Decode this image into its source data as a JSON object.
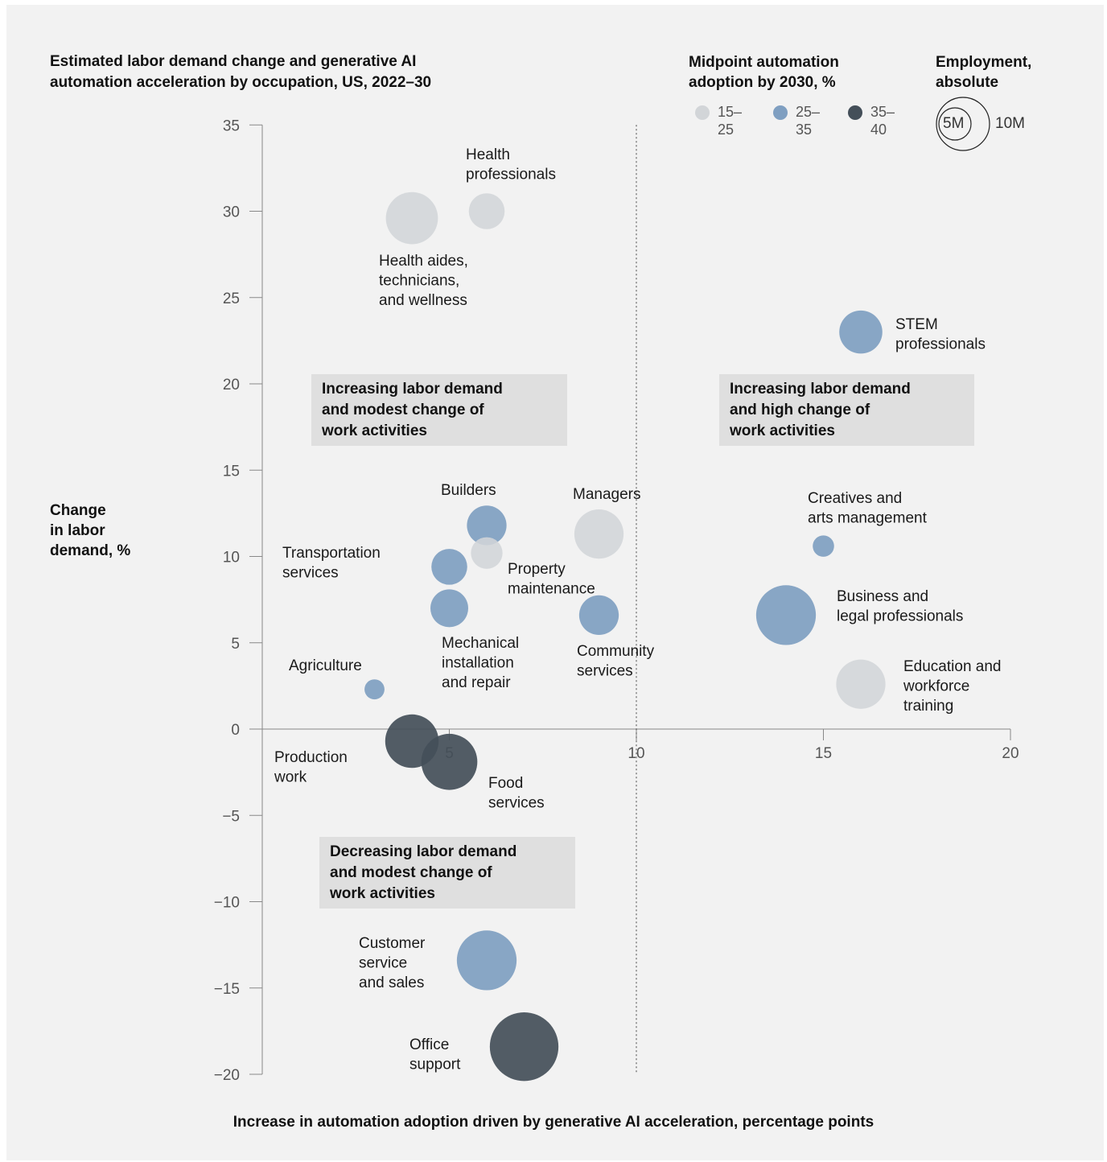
{
  "title": "Estimated labor demand change and generative AI\nautomation acceleration by occupation, US, 2022–30",
  "legend": {
    "color_title": "Midpoint automation\nadoption by 2030, %",
    "color_items": [
      {
        "label": "15–25",
        "color": "#d2d5d8"
      },
      {
        "label": "25–35",
        "color": "#7f9fc1"
      },
      {
        "label": "35–40",
        "color": "#444f59"
      }
    ],
    "size_title": "Employment,\nabsolute",
    "size_items": [
      "5M",
      "10M"
    ]
  },
  "quadrants": [
    "Increasing labor demand\nand modest change of\nwork activities",
    "Increasing labor demand\nand high change of\nwork activities",
    "Decreasing labor demand\nand modest change of\nwork activities"
  ],
  "chart_data": {
    "type": "scatter",
    "title": "Estimated labor demand change and generative AI automation acceleration by occupation, US, 2022–30",
    "xlabel": "Increase in automation adoption driven by generative AI acceleration, percentage points",
    "ylabel": "Change\nin labor\ndemand, %",
    "xlim": [
      0,
      20
    ],
    "ylim": [
      -20,
      35
    ],
    "xticks": [
      5,
      10,
      15,
      20
    ],
    "yticks": [
      35,
      30,
      25,
      20,
      15,
      10,
      5,
      0,
      -5,
      -10,
      -15,
      -20
    ],
    "x_tick_labels": [
      "5",
      "10",
      "15",
      "20"
    ],
    "y_tick_labels": [
      "35",
      "30",
      "25",
      "20",
      "15",
      "10",
      "5",
      "0",
      "−5",
      "−10",
      "−15",
      "−20"
    ],
    "reference_line_x": 10,
    "points": [
      {
        "label": "Health\nprofessionals",
        "x": 6.0,
        "y": 30.0,
        "group": "15–25",
        "employment_m": 4.5
      },
      {
        "label": "Health aides,\ntechnicians,\nand wellness",
        "x": 4.0,
        "y": 29.6,
        "group": "15–25",
        "employment_m": 9.5
      },
      {
        "label": "STEM\nprofessionals",
        "x": 16.0,
        "y": 23.0,
        "group": "25–35",
        "employment_m": 6.5
      },
      {
        "label": "Builders",
        "x": 6.0,
        "y": 11.8,
        "group": "25–35",
        "employment_m": 5.5
      },
      {
        "label": "Managers",
        "x": 9.0,
        "y": 11.3,
        "group": "15–25",
        "employment_m": 8.5
      },
      {
        "label": "Creatives and\narts management",
        "x": 15.0,
        "y": 10.6,
        "group": "25–35",
        "employment_m": 1.6
      },
      {
        "label": "Property\nmaintenance",
        "x": 6.0,
        "y": 10.2,
        "group": "15–25",
        "employment_m": 3.5
      },
      {
        "label": "Transportation\nservices",
        "x": 5.0,
        "y": 9.4,
        "group": "25–35",
        "employment_m": 4.5
      },
      {
        "label": "Mechanical\ninstallation\nand repair",
        "x": 5.0,
        "y": 7.0,
        "group": "25–35",
        "employment_m": 5.0
      },
      {
        "label": "Community\nservices",
        "x": 9.0,
        "y": 6.6,
        "group": "25–35",
        "employment_m": 5.5
      },
      {
        "label": "Business and\nlegal professionals",
        "x": 14.0,
        "y": 6.6,
        "group": "25–35",
        "employment_m": 12.5
      },
      {
        "label": "Education and\nworkforce\ntraining",
        "x": 16.0,
        "y": 2.6,
        "group": "15–25",
        "employment_m": 8.5
      },
      {
        "label": "Agriculture",
        "x": 3.0,
        "y": 2.3,
        "group": "25–35",
        "employment_m": 1.4
      },
      {
        "label": "Production\nwork",
        "x": 4.0,
        "y": -0.7,
        "group": "35–40",
        "employment_m": 10.0
      },
      {
        "label": "Food\nservices",
        "x": 5.0,
        "y": -1.9,
        "group": "35–40",
        "employment_m": 11.0
      },
      {
        "label": "Customer\nservice\nand sales",
        "x": 6.0,
        "y": -13.4,
        "group": "25–35",
        "employment_m": 12.5
      },
      {
        "label": "Office\nsupport",
        "x": 7.0,
        "y": -18.4,
        "group": "35–40",
        "employment_m": 16.5
      }
    ]
  }
}
